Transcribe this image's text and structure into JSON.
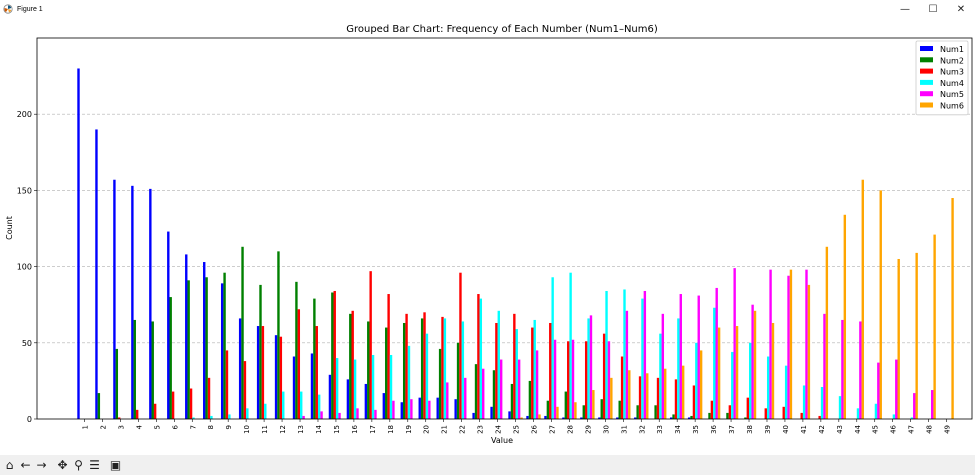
{
  "window": {
    "title": "Figure 1",
    "minimize_glyph": "—",
    "maximize_glyph": "☐",
    "close_glyph": "✕"
  },
  "toolbar": {
    "items": [
      {
        "name": "home-icon",
        "glyph": "⌂"
      },
      {
        "name": "back-arrow-icon",
        "glyph": "←"
      },
      {
        "name": "forward-arrow-icon",
        "glyph": "→"
      },
      {
        "name": "pan-icon",
        "glyph": "✥"
      },
      {
        "name": "zoom-icon",
        "glyph": "⚲"
      },
      {
        "name": "configure-subplots-icon",
        "glyph": "☰"
      },
      {
        "name": "save-icon",
        "glyph": "▣"
      }
    ]
  },
  "chart_data": {
    "type": "bar",
    "title": "Grouped Bar Chart: Frequency of Each Number (Num1–Num6)",
    "xlabel": "Value",
    "ylabel": "Count",
    "ylim": [
      0,
      250
    ],
    "yticks": [
      0,
      50,
      100,
      150,
      200
    ],
    "grid": "y-dashed",
    "legend_position": "top-right",
    "categories": [
      "1",
      "2",
      "3",
      "4",
      "5",
      "6",
      "7",
      "8",
      "9",
      "10",
      "11",
      "12",
      "13",
      "14",
      "15",
      "16",
      "17",
      "18",
      "19",
      "20",
      "21",
      "22",
      "23",
      "24",
      "25",
      "26",
      "27",
      "28",
      "29",
      "30",
      "31",
      "32",
      "33",
      "34",
      "35",
      "36",
      "37",
      "38",
      "39",
      "40",
      "41",
      "42",
      "43",
      "44",
      "45",
      "46",
      "47",
      "48",
      "49"
    ],
    "series": [
      {
        "name": "Num1",
        "color": "#0000ff",
        "values": [
          230,
          190,
          157,
          153,
          151,
          123,
          108,
          103,
          89,
          66,
          61,
          55,
          41,
          43,
          29,
          26,
          23,
          17,
          11,
          14,
          14,
          13,
          4,
          8,
          5,
          2,
          2,
          1,
          1,
          1,
          1,
          1,
          0,
          1,
          1,
          0,
          0,
          0,
          0,
          0,
          0,
          0,
          0,
          0,
          0,
          0,
          0,
          0,
          0
        ]
      },
      {
        "name": "Num2",
        "color": "#008000",
        "values": [
          0,
          17,
          46,
          65,
          64,
          80,
          91,
          93,
          96,
          113,
          88,
          110,
          90,
          79,
          83,
          69,
          64,
          60,
          63,
          66,
          46,
          50,
          36,
          32,
          23,
          25,
          12,
          18,
          9,
          13,
          12,
          9,
          9,
          3,
          2,
          4,
          4,
          1,
          0,
          0,
          0,
          0,
          0,
          0,
          0,
          0,
          0,
          0,
          0
        ]
      },
      {
        "name": "Num3",
        "color": "#ff0000",
        "values": [
          0,
          0,
          1,
          6,
          10,
          18,
          20,
          27,
          45,
          38,
          61,
          54,
          72,
          61,
          84,
          71,
          97,
          82,
          69,
          70,
          67,
          96,
          82,
          63,
          69,
          60,
          63,
          51,
          51,
          56,
          41,
          28,
          27,
          26,
          22,
          12,
          9,
          14,
          7,
          8,
          4,
          2,
          0,
          0,
          0,
          0,
          0,
          0,
          0
        ]
      },
      {
        "name": "Num4",
        "color": "#00ffff",
        "values": [
          0,
          0,
          0,
          0,
          0,
          0,
          1,
          2,
          3,
          7,
          10,
          18,
          18,
          16,
          40,
          39,
          42,
          42,
          48,
          56,
          66,
          64,
          79,
          71,
          59,
          65,
          93,
          96,
          66,
          84,
          85,
          79,
          56,
          66,
          50,
          73,
          44,
          50,
          41,
          35,
          22,
          21,
          15,
          7,
          10,
          3,
          1,
          0,
          0
        ]
      },
      {
        "name": "Num5",
        "color": "#ff00ff",
        "values": [
          0,
          0,
          0,
          0,
          0,
          0,
          0,
          0,
          0,
          0,
          0,
          0,
          2,
          5,
          4,
          7,
          6,
          12,
          13,
          12,
          24,
          27,
          33,
          39,
          39,
          45,
          52,
          52,
          68,
          51,
          71,
          84,
          69,
          82,
          81,
          86,
          99,
          75,
          98,
          94,
          98,
          69,
          65,
          64,
          37,
          39,
          17,
          19,
          0
        ]
      },
      {
        "name": "Num6",
        "color": "#ffa500",
        "values": [
          0,
          0,
          0,
          0,
          0,
          0,
          0,
          0,
          0,
          0,
          0,
          0,
          0,
          0,
          0,
          0,
          0,
          0,
          0,
          0,
          0,
          0,
          0,
          0,
          1,
          3,
          8,
          11,
          19,
          27,
          32,
          30,
          33,
          35,
          45,
          60,
          61,
          71,
          63,
          98,
          88,
          113,
          134,
          157,
          150,
          105,
          109,
          121,
          145
        ]
      }
    ]
  }
}
